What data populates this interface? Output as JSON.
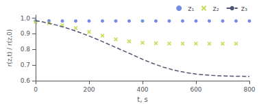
{
  "chart_data": {
    "type": "scatter",
    "xlabel": "t, s",
    "ylabel": "r(z,t) / r(z,0)",
    "xlim": [
      0,
      800
    ],
    "ylim": [
      0.6,
      1.02
    ],
    "xticks": [
      0,
      200,
      400,
      600,
      800
    ],
    "yticks": [
      0.6,
      0.7,
      0.8,
      0.9,
      {
        "value": 1.0,
        "label": "1.0"
      }
    ],
    "grid": false,
    "legend": "upper right",
    "series": [
      {
        "name": "z₁",
        "type": "scatter",
        "marker": "o",
        "x": [
          0,
          50,
          100,
          150,
          200,
          250,
          300,
          350,
          400,
          450,
          500,
          550,
          600,
          650,
          700,
          750,
          800
        ],
        "values": [
          0.983,
          0.983,
          0.982,
          0.982,
          0.982,
          0.982,
          0.982,
          0.982,
          0.982,
          0.982,
          0.982,
          0.982,
          0.982,
          0.982,
          0.982,
          0.982,
          0.982
        ]
      },
      {
        "name": "z₂",
        "type": "scatter",
        "marker": "x",
        "x": [
          0,
          50,
          100,
          150,
          200,
          250,
          300,
          350,
          400,
          450,
          500,
          550,
          600,
          650,
          700,
          750
        ],
        "values": [
          0.975,
          0.968,
          0.955,
          0.937,
          0.912,
          0.888,
          0.865,
          0.852,
          0.843,
          0.84,
          0.838,
          0.837,
          0.837,
          0.837,
          0.837,
          0.837
        ]
      },
      {
        "name": "z₃",
        "type": "line",
        "line_style": "dashed",
        "x": [
          0,
          20,
          50,
          80,
          120,
          160,
          200,
          240,
          280,
          320,
          360,
          400,
          440,
          480,
          520,
          560,
          600,
          630,
          660,
          700,
          750,
          800
        ],
        "values": [
          0.983,
          0.978,
          0.968,
          0.955,
          0.935,
          0.912,
          0.886,
          0.858,
          0.828,
          0.798,
          0.768,
          0.737,
          0.71,
          0.686,
          0.667,
          0.653,
          0.643,
          0.638,
          0.634,
          0.631,
          0.629,
          0.628
        ]
      }
    ]
  }
}
